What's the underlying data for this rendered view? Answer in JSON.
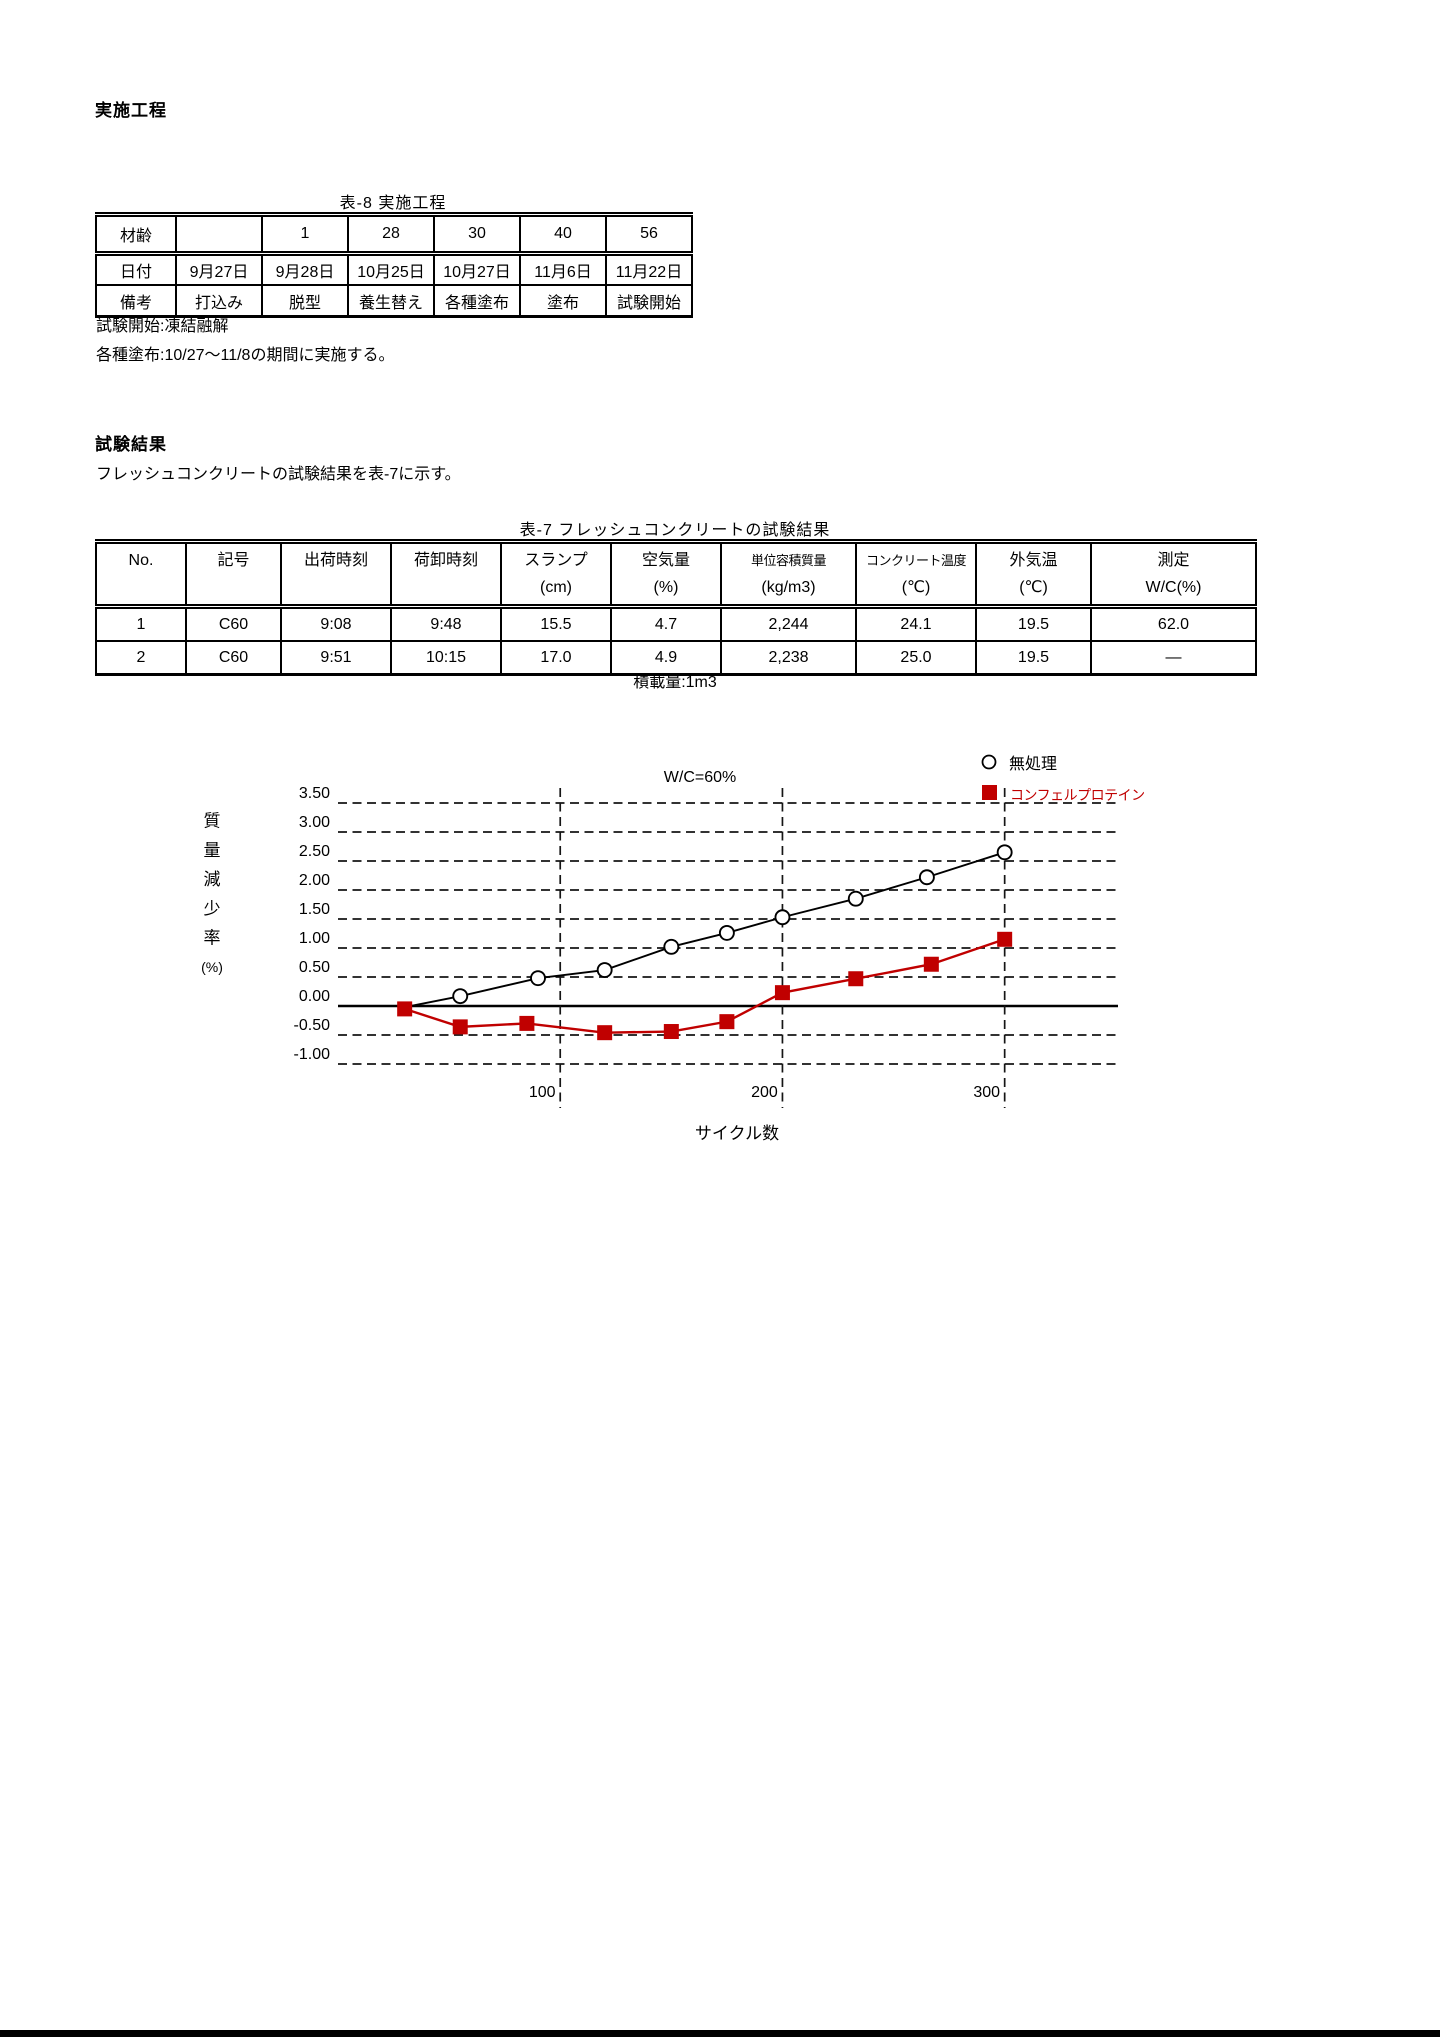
{
  "colors": {
    "accent_red": "#c00000",
    "ink": "#000000"
  },
  "section_implementation": {
    "heading": "実施工程"
  },
  "table8": {
    "title": "表-8 実施工程",
    "rows": [
      {
        "label": "材齢",
        "cells": [
          "",
          "1",
          "28",
          "30",
          "40",
          "56"
        ]
      },
      {
        "label": "日付",
        "cells": [
          "9月27日",
          "9月28日",
          "10月25日",
          "10月27日",
          "11月6日",
          "11月22日"
        ]
      },
      {
        "label": "備考",
        "cells": [
          "打込み",
          "脱型",
          "養生替え",
          "各種塗布",
          "塗布",
          "試験開始"
        ]
      }
    ],
    "note1": "試験開始:凍結融解",
    "note2": "各種塗布:10/27～11/8の期間に実施する。"
  },
  "section_results": {
    "heading": "試験結果",
    "lead": "フレッシュコンクリートの試験結果を表-7に示す。"
  },
  "table7": {
    "title": "表-7 フレッシュコンクリートの試験結果",
    "headers": [
      {
        "line1": "No.",
        "line2": ""
      },
      {
        "line1": "記号",
        "line2": ""
      },
      {
        "line1": "出荷時刻",
        "line2": ""
      },
      {
        "line1": "荷卸時刻",
        "line2": ""
      },
      {
        "line1": "スランプ",
        "line2": "(cm)"
      },
      {
        "line1": "空気量",
        "line2": "(%)"
      },
      {
        "line1": "単位容積質量",
        "line2": "(kg/m3)"
      },
      {
        "line1": "コンクリート温度",
        "line2": "(℃)"
      },
      {
        "line1": "外気温",
        "line2": "(℃)"
      },
      {
        "line1": "測定",
        "line2": "W/C(%)"
      }
    ],
    "rows": [
      [
        "1",
        "C60",
        "9:08",
        "9:48",
        "15.5",
        "4.7",
        "2,244",
        "24.1",
        "19.5",
        "62.0"
      ],
      [
        "2",
        "C60",
        "9:51",
        "10:15",
        "17.0",
        "4.9",
        "2,238",
        "25.0",
        "19.5",
        "―"
      ]
    ],
    "footnote": "積載量:1m3"
  },
  "chart_data": {
    "type": "line",
    "title": "W/C=60%",
    "xlabel": "サイクル数",
    "ylabel": "質量減少率(%)",
    "ylabel_chars": [
      "質",
      "量",
      "減",
      "少",
      "率",
      "(%)"
    ],
    "xlim": [
      0,
      351
    ],
    "ylim": [
      -1.0,
      3.5
    ],
    "x_ticks": [
      100,
      200,
      300
    ],
    "y_ticks": [
      3.5,
      3.0,
      2.5,
      2.0,
      1.5,
      1.0,
      0.5,
      0.0,
      -0.5,
      -1.0
    ],
    "y_tick_labels": [
      "3.50",
      "3.00",
      "2.50",
      "2.00",
      "1.50",
      "1.00",
      "0.50",
      "0.00",
      "-0.50",
      "-1.00"
    ],
    "grid": "dashed",
    "legend_position": "top-right",
    "series": [
      {
        "name": "無処理",
        "color": "#000000",
        "marker": "circle-open",
        "skip_first_marker": true,
        "points": [
          [
            30,
            -0.02
          ],
          [
            55,
            0.17
          ],
          [
            90,
            0.48
          ],
          [
            120,
            0.62
          ],
          [
            150,
            1.02
          ],
          [
            175,
            1.26
          ],
          [
            200,
            1.53
          ],
          [
            233,
            1.85
          ],
          [
            265,
            2.22
          ],
          [
            300,
            2.65
          ]
        ]
      },
      {
        "name": "コンフェルプロテイン",
        "color": "#c00000",
        "marker": "square-filled",
        "skip_first_marker": false,
        "points": [
          [
            30,
            -0.05
          ],
          [
            55,
            -0.36
          ],
          [
            85,
            -0.3
          ],
          [
            120,
            -0.46
          ],
          [
            150,
            -0.44
          ],
          [
            175,
            -0.27
          ],
          [
            200,
            0.23
          ],
          [
            233,
            0.47
          ],
          [
            267,
            0.72
          ],
          [
            300,
            1.15
          ]
        ]
      }
    ]
  }
}
